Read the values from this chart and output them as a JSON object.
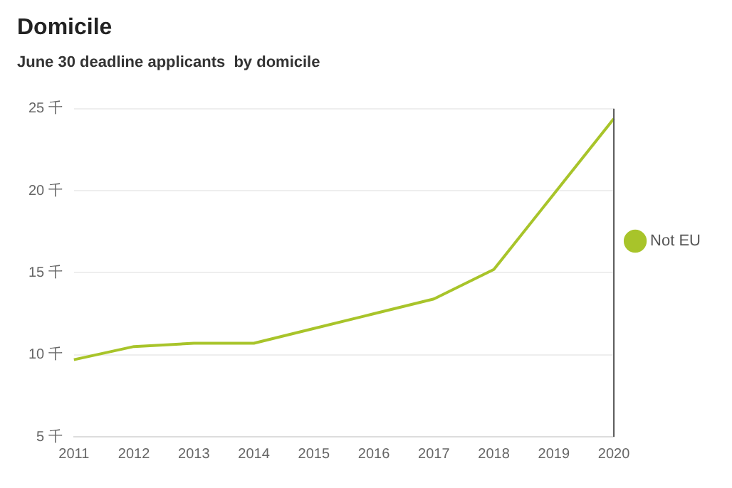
{
  "chart_data": {
    "type": "line",
    "title": "Domicile",
    "subtitle": "June 30 deadline applicants  by domicile",
    "categories": [
      "2011",
      "2012",
      "2013",
      "2014",
      "2015",
      "2016",
      "2017",
      "2018",
      "2019",
      "2020"
    ],
    "series": [
      {
        "name": "Not EU",
        "color": "#a8c42a",
        "values": [
          9.7,
          10.5,
          10.7,
          10.7,
          11.6,
          12.5,
          13.4,
          15.2,
          19.8,
          24.4
        ]
      }
    ],
    "ylim": [
      5,
      25
    ],
    "yticks": [
      {
        "value": 5,
        "label": "5 千"
      },
      {
        "value": 10,
        "label": "10 千"
      },
      {
        "value": 15,
        "label": "15 千"
      },
      {
        "value": 20,
        "label": "20 千"
      },
      {
        "value": 25,
        "label": "25 千"
      }
    ],
    "ref_lines": [
      {
        "axis": "x",
        "value": "2020",
        "color": "#555555"
      }
    ],
    "grid": "y",
    "legend": "right",
    "marker": "none",
    "line_style": "solid"
  }
}
